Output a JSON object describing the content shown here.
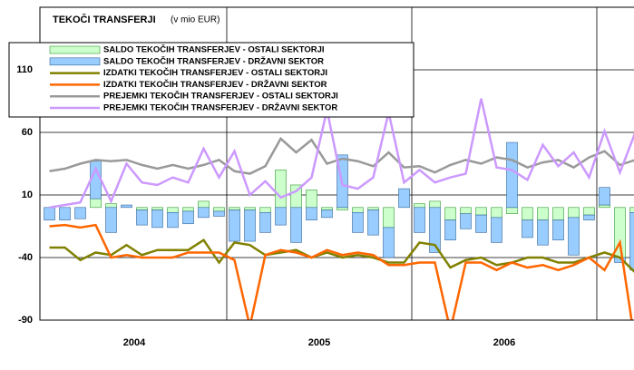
{
  "chart_data": {
    "type": "bar-line",
    "title": "TEKOČI TRANSFERJI",
    "subtitle": "(v mio EUR)",
    "categories": [
      null,
      null,
      null,
      null,
      null,
      null,
      null,
      null,
      null,
      null,
      null,
      null,
      null,
      null,
      null,
      null,
      null,
      null,
      null,
      null,
      null,
      null,
      null,
      null,
      null,
      null,
      null,
      null,
      null,
      null,
      null,
      null,
      null,
      null,
      null,
      null,
      null,
      null,
      null
    ],
    "year_labels": [
      "2004",
      "2005",
      "2006"
    ],
    "ylim": [
      -90,
      160
    ],
    "yticks": [
      -90,
      -40,
      10,
      60,
      110
    ],
    "grid": true,
    "series": [
      {
        "name": "SALDO TEKOČIH TRANSFERJEV - OSTALI SEKTORJI",
        "kind": "bar",
        "color": "#ccffcc",
        "values": [
          0,
          0,
          0,
          7,
          3,
          0,
          -2,
          -2,
          -4,
          -3,
          5,
          -3,
          -2,
          -2,
          -4,
          30,
          18,
          14,
          -2,
          -2,
          -4,
          -2,
          -16,
          0,
          3,
          5,
          -10,
          -5,
          -6,
          -8,
          -5,
          -10,
          -10,
          -10,
          -8,
          -6,
          2,
          -40,
          -4
        ]
      },
      {
        "name": "SALDO TEKOČIH TRANSFERJEV - DRŽAVNI SEKTOR",
        "kind": "bar",
        "color": "#99ccff",
        "values": [
          -10,
          -10,
          -9,
          30,
          -20,
          2,
          -12,
          -14,
          -12,
          -10,
          -8,
          -4,
          -25,
          -25,
          -16,
          -14,
          -28,
          -10,
          -6,
          42,
          -16,
          -20,
          -24,
          15,
          -20,
          -36,
          -16,
          -12,
          -14,
          -20,
          52,
          -14,
          -20,
          -16,
          -30,
          -4,
          14,
          -4,
          -46
        ]
      },
      {
        "name": "IZDATKI TEKOČIH TRANSFERJEV - OSTALI SEKTORJI",
        "kind": "line",
        "color": "#808000",
        "values": [
          -32,
          -32,
          -42,
          -36,
          -38,
          -30,
          -38,
          -34,
          -34,
          -34,
          -26,
          -44,
          -28,
          -30,
          -38,
          -36,
          -34,
          -40,
          -36,
          -40,
          -38,
          -40,
          -44,
          -44,
          -28,
          -30,
          -48,
          -42,
          -40,
          -46,
          -44,
          -40,
          -40,
          -44,
          -44,
          -40,
          -36,
          -40,
          -52
        ]
      },
      {
        "name": "IZDATKI TEKOČIH TRANSFERJEV - DRŽAVNI SEKTOR",
        "kind": "line",
        "color": "#ff6600",
        "values": [
          -15,
          -14,
          -16,
          -14,
          -40,
          -38,
          -40,
          -40,
          -40,
          -36,
          -36,
          -36,
          -42,
          -95,
          -38,
          -34,
          -36,
          -40,
          -34,
          -38,
          -36,
          -38,
          -46,
          -46,
          -44,
          -44,
          -98,
          -44,
          -44,
          -50,
          -44,
          -48,
          -46,
          -50,
          -46,
          -40,
          -50,
          -28,
          -110
        ]
      },
      {
        "name": "PREJEMKI TEKOČIH TRANSFERJEV - OSTALI SEKTORJI",
        "kind": "line",
        "color": "#999999",
        "values": [
          29,
          31,
          35,
          38,
          37,
          38,
          34,
          31,
          34,
          31,
          34,
          38,
          29,
          27,
          33,
          55,
          44,
          54,
          35,
          39,
          37,
          33,
          44,
          32,
          33,
          28,
          34,
          38,
          35,
          40,
          38,
          32,
          36,
          38,
          32,
          40,
          45,
          34,
          38
        ]
      },
      {
        "name": "PREJEMKI TEKOČIH TRANSFERJEV - DRŽAVNI SEKTOR",
        "kind": "line",
        "color": "#cc99ff",
        "values": [
          0,
          2,
          4,
          31,
          5,
          35,
          20,
          18,
          24,
          20,
          47,
          24,
          45,
          10,
          21,
          8,
          13,
          24,
          78,
          18,
          15,
          24,
          76,
          20,
          30,
          20,
          24,
          27,
          87,
          32,
          30,
          22,
          50,
          33,
          44,
          24,
          61,
          28,
          60
        ]
      }
    ]
  }
}
